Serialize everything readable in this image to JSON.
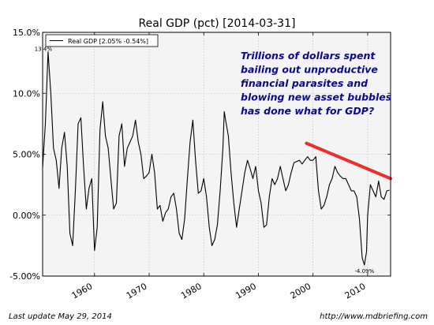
{
  "chart_data": {
    "type": "line",
    "title": "Real GDP (pct) [2014-03-31]",
    "xlabel": "",
    "ylabel": "",
    "xlim": [
      1950.5,
      2014.2
    ],
    "ylim": [
      -5.0,
      15.0
    ],
    "y_ticks": [
      {
        "value": 15.0,
        "label": "15.0%"
      },
      {
        "value": 10.0,
        "label": "10.0%"
      },
      {
        "value": 5.0,
        "label": "5.00%"
      },
      {
        "value": 0.0,
        "label": "0.00%"
      },
      {
        "value": -5.0,
        "label": "-5.00%"
      }
    ],
    "x_ticks": [
      {
        "value": 1960,
        "label": "1960"
      },
      {
        "value": 1970,
        "label": "1970"
      },
      {
        "value": 1980,
        "label": "1980"
      },
      {
        "value": 1990,
        "label": "1990"
      },
      {
        "value": 2000,
        "label": "2000"
      },
      {
        "value": 2010,
        "label": "2010"
      }
    ],
    "grid": true,
    "legend": {
      "placement": "top-left",
      "entry": "Real GDP [2.05% -0.54%]"
    },
    "series": [
      {
        "name": "Real GDP [2.05% -0.54%]",
        "color": "#000000",
        "points": [
          [
            1950.5,
            3.9
          ],
          [
            1951.0,
            7.5
          ],
          [
            1951.5,
            13.4
          ],
          [
            1952.0,
            10.0
          ],
          [
            1952.5,
            5.5
          ],
          [
            1953.0,
            4.5
          ],
          [
            1953.5,
            2.2
          ],
          [
            1954.0,
            5.5
          ],
          [
            1954.5,
            6.8
          ],
          [
            1955.0,
            4.0
          ],
          [
            1955.5,
            -1.5
          ],
          [
            1956.0,
            -2.5
          ],
          [
            1956.5,
            2.0
          ],
          [
            1957.0,
            7.5
          ],
          [
            1957.5,
            8.0
          ],
          [
            1958.0,
            4.0
          ],
          [
            1958.5,
            0.5
          ],
          [
            1959.0,
            2.2
          ],
          [
            1959.5,
            3.0
          ],
          [
            1960.0,
            -2.9
          ],
          [
            1960.5,
            -1.0
          ],
          [
            1961.0,
            7.0
          ],
          [
            1961.5,
            9.3
          ],
          [
            1962.0,
            6.5
          ],
          [
            1962.5,
            5.5
          ],
          [
            1963.0,
            3.0
          ],
          [
            1963.5,
            0.5
          ],
          [
            1964.0,
            1.0
          ],
          [
            1964.5,
            6.5
          ],
          [
            1965.0,
            7.5
          ],
          [
            1965.5,
            4.0
          ],
          [
            1966.0,
            5.5
          ],
          [
            1966.5,
            6.0
          ],
          [
            1967.0,
            6.5
          ],
          [
            1967.5,
            7.8
          ],
          [
            1968.0,
            6.0
          ],
          [
            1968.5,
            5.0
          ],
          [
            1969.0,
            3.0
          ],
          [
            1969.5,
            3.2
          ],
          [
            1970.0,
            3.5
          ],
          [
            1970.5,
            5.0
          ],
          [
            1971.0,
            3.5
          ],
          [
            1971.5,
            0.5
          ],
          [
            1972.0,
            0.8
          ],
          [
            1972.5,
            -0.5
          ],
          [
            1973.0,
            0.2
          ],
          [
            1973.5,
            0.5
          ],
          [
            1974.0,
            1.5
          ],
          [
            1974.5,
            1.8
          ],
          [
            1975.0,
            0.5
          ],
          [
            1975.5,
            -1.5
          ],
          [
            1976.0,
            -2.0
          ],
          [
            1976.5,
            -0.3
          ],
          [
            1977.0,
            3.0
          ],
          [
            1977.5,
            6.0
          ],
          [
            1978.0,
            7.8
          ],
          [
            1978.5,
            4.5
          ],
          [
            1979.0,
            1.8
          ],
          [
            1979.5,
            2.0
          ],
          [
            1980.0,
            3.0
          ],
          [
            1980.5,
            1.5
          ],
          [
            1981.0,
            -1.0
          ],
          [
            1981.5,
            -2.5
          ],
          [
            1982.0,
            -2.0
          ],
          [
            1982.5,
            -0.8
          ],
          [
            1983.0,
            2.0
          ],
          [
            1983.5,
            5.5
          ],
          [
            1983.75,
            8.5
          ],
          [
            1984.0,
            7.8
          ],
          [
            1984.5,
            6.5
          ],
          [
            1985.0,
            3.5
          ],
          [
            1985.5,
            1.0
          ],
          [
            1986.0,
            -1.0
          ],
          [
            1986.5,
            0.5
          ],
          [
            1987.0,
            2.0
          ],
          [
            1987.5,
            3.5
          ],
          [
            1988.0,
            4.5
          ],
          [
            1988.5,
            3.8
          ],
          [
            1989.0,
            3.0
          ],
          [
            1989.5,
            4.0
          ],
          [
            1990.0,
            2.0
          ],
          [
            1990.5,
            1.0
          ],
          [
            1991.0,
            -1.0
          ],
          [
            1991.5,
            -0.8
          ],
          [
            1992.0,
            1.5
          ],
          [
            1992.5,
            3.0
          ],
          [
            1993.0,
            2.5
          ],
          [
            1993.5,
            3.0
          ],
          [
            1994.0,
            4.0
          ],
          [
            1994.5,
            3.0
          ],
          [
            1995.0,
            2.0
          ],
          [
            1995.5,
            2.5
          ],
          [
            1996.0,
            3.5
          ],
          [
            1996.5,
            4.3
          ],
          [
            1997.0,
            4.4
          ],
          [
            1997.5,
            4.5
          ],
          [
            1998.0,
            4.2
          ],
          [
            1998.5,
            4.5
          ],
          [
            1999.0,
            4.8
          ],
          [
            1999.5,
            4.5
          ],
          [
            2000.0,
            4.5
          ],
          [
            2000.5,
            4.8
          ],
          [
            2001.0,
            2.0
          ],
          [
            2001.5,
            0.5
          ],
          [
            2002.0,
            0.8
          ],
          [
            2002.5,
            1.5
          ],
          [
            2003.0,
            2.5
          ],
          [
            2003.5,
            3.0
          ],
          [
            2004.0,
            4.0
          ],
          [
            2004.5,
            3.5
          ],
          [
            2005.0,
            3.2
          ],
          [
            2005.5,
            3.0
          ],
          [
            2006.0,
            3.0
          ],
          [
            2006.5,
            2.5
          ],
          [
            2007.0,
            2.0
          ],
          [
            2007.5,
            2.0
          ],
          [
            2008.0,
            1.5
          ],
          [
            2008.5,
            -0.3
          ],
          [
            2009.0,
            -3.5
          ],
          [
            2009.4,
            -4.09
          ],
          [
            2009.8,
            -3.0
          ],
          [
            2010.0,
            0.0
          ],
          [
            2010.5,
            2.5
          ],
          [
            2011.0,
            2.0
          ],
          [
            2011.5,
            1.5
          ],
          [
            2012.0,
            2.8
          ],
          [
            2012.5,
            1.5
          ],
          [
            2013.0,
            1.3
          ],
          [
            2013.5,
            2.0
          ],
          [
            2014.0,
            2.05
          ]
        ]
      }
    ],
    "annotations": [
      {
        "label": "13.4%",
        "x": 1951.5,
        "y": 13.4
      },
      {
        "label": "-4.09%",
        "x": 2009.4,
        "y": -4.09
      },
      {
        "label": "Trillions of dollars spent bailing out unproductive financial parasites and blowing new asset bubbles has done what for GDP?",
        "lines": [
          "Trillions of dollars spent",
          "bailing out unproductive",
          "financial parasites and",
          "blowing new asset bubbles",
          "has done what for GDP?"
        ]
      }
    ],
    "trendline": {
      "color": "#e8312e",
      "start": [
        1998.8,
        5.9
      ],
      "end": [
        2014.2,
        3.0
      ]
    }
  },
  "footer": {
    "last_update": "Last update May 29, 2014",
    "url": "http://www.mdbriefing.com"
  }
}
